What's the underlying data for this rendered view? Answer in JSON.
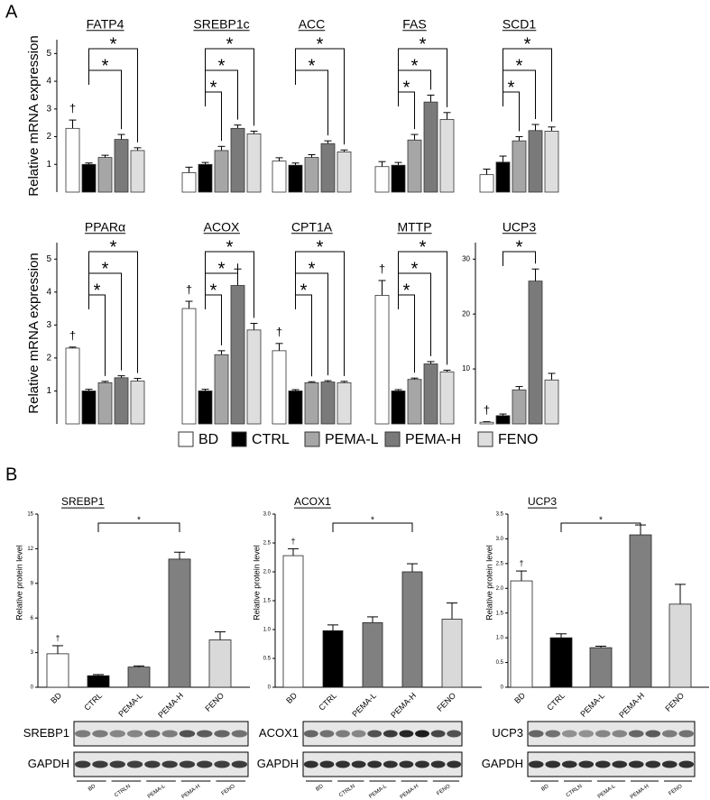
{
  "panel_labels": [
    "A",
    "B"
  ],
  "legend": {
    "labels": [
      "BD",
      "CTRL",
      "PEMA-L",
      "PEMA-H",
      "FENO"
    ],
    "colors": [
      "#ffffff",
      "#000000",
      "#a6a6a6",
      "#7a7a7a",
      "#dedede"
    ]
  },
  "chart_data": [
    {
      "type": "bar",
      "title": "FATP4",
      "ylabel": "Relative mRNA expression",
      "values": [
        2.3,
        1.0,
        1.25,
        1.9,
        1.5
      ],
      "errors": [
        0.3,
        0.05,
        0.08,
        0.18,
        0.1
      ],
      "ylim": [
        0,
        5.5
      ],
      "yticks": [
        1,
        2,
        3,
        4,
        5
      ],
      "significance": [
        {
          "pair": [
            1,
            4
          ],
          "label": "*"
        },
        {
          "pair": [
            1,
            3
          ],
          "label": "*"
        }
      ],
      "marks": [
        {
          "bar": 0,
          "label": "†"
        }
      ]
    },
    {
      "type": "bar",
      "title": "SREBP1c",
      "values": [
        0.7,
        1.0,
        1.5,
        2.3,
        2.1
      ],
      "errors": [
        0.2,
        0.07,
        0.15,
        0.12,
        0.1
      ],
      "ylim": [
        0,
        5.5
      ],
      "significance": [
        {
          "pair": [
            1,
            4
          ],
          "label": "*"
        },
        {
          "pair": [
            1,
            3
          ],
          "label": "*"
        },
        {
          "pair": [
            1,
            2
          ],
          "label": "*"
        }
      ]
    },
    {
      "type": "bar",
      "title": "ACC",
      "values": [
        1.12,
        0.97,
        1.25,
        1.75,
        1.45
      ],
      "errors": [
        0.12,
        0.08,
        0.1,
        0.1,
        0.07
      ],
      "ylim": [
        0,
        5.5
      ],
      "significance": [
        {
          "pair": [
            1,
            4
          ],
          "label": "*"
        },
        {
          "pair": [
            1,
            3
          ],
          "label": "*"
        }
      ]
    },
    {
      "type": "bar",
      "title": "FAS",
      "values": [
        0.92,
        0.97,
        1.88,
        3.25,
        2.62
      ],
      "errors": [
        0.18,
        0.1,
        0.2,
        0.25,
        0.25
      ],
      "ylim": [
        0,
        5.5
      ],
      "significance": [
        {
          "pair": [
            1,
            4
          ],
          "label": "*"
        },
        {
          "pair": [
            1,
            3
          ],
          "label": "*"
        },
        {
          "pair": [
            1,
            2
          ],
          "label": "*"
        }
      ]
    },
    {
      "type": "bar",
      "title": "SCD1",
      "values": [
        0.63,
        1.08,
        1.85,
        2.22,
        2.2
      ],
      "errors": [
        0.2,
        0.22,
        0.15,
        0.22,
        0.15
      ],
      "ylim": [
        0,
        5.5
      ],
      "significance": [
        {
          "pair": [
            1,
            4
          ],
          "label": "*"
        },
        {
          "pair": [
            1,
            3
          ],
          "label": "*"
        },
        {
          "pair": [
            1,
            2
          ],
          "label": "*"
        }
      ]
    },
    {
      "type": "bar",
      "title": "PPARα",
      "ylabel": "Relative mRNA expression",
      "values": [
        2.3,
        1.0,
        1.25,
        1.4,
        1.3
      ],
      "errors": [
        0.03,
        0.05,
        0.04,
        0.06,
        0.08
      ],
      "ylim": [
        0,
        5.5
      ],
      "yticks": [
        1,
        2,
        3,
        4,
        5
      ],
      "significance": [
        {
          "pair": [
            1,
            4
          ],
          "label": "*"
        },
        {
          "pair": [
            1,
            3
          ],
          "label": "*"
        },
        {
          "pair": [
            1,
            2
          ],
          "label": "*"
        }
      ],
      "marks": [
        {
          "bar": 0,
          "label": "†"
        }
      ]
    },
    {
      "type": "bar",
      "title": "ACOX",
      "values": [
        3.5,
        1.0,
        2.1,
        4.2,
        2.85
      ],
      "errors": [
        0.22,
        0.05,
        0.12,
        0.5,
        0.2
      ],
      "ylim": [
        0,
        5.5
      ],
      "significance": [
        {
          "pair": [
            1,
            4
          ],
          "label": "*"
        },
        {
          "pair": [
            1,
            3
          ],
          "label": "*"
        },
        {
          "pair": [
            1,
            2
          ],
          "label": "*"
        }
      ],
      "marks": [
        {
          "bar": 0,
          "label": "†"
        }
      ]
    },
    {
      "type": "bar",
      "title": "CPT1A",
      "values": [
        2.22,
        1.0,
        1.25,
        1.27,
        1.25
      ],
      "errors": [
        0.22,
        0.04,
        0.03,
        0.04,
        0.04
      ],
      "ylim": [
        0,
        5.5
      ],
      "significance": [
        {
          "pair": [
            1,
            4
          ],
          "label": "*"
        },
        {
          "pair": [
            1,
            3
          ],
          "label": "*"
        },
        {
          "pair": [
            1,
            2
          ],
          "label": "*"
        }
      ],
      "marks": [
        {
          "bar": 0,
          "label": "†"
        }
      ]
    },
    {
      "type": "bar",
      "title": "MTTP",
      "values": [
        3.9,
        1.0,
        1.35,
        1.82,
        1.58
      ],
      "errors": [
        0.45,
        0.04,
        0.04,
        0.07,
        0.05
      ],
      "ylim": [
        0,
        5.5
      ],
      "significance": [
        {
          "pair": [
            1,
            4
          ],
          "label": "*"
        },
        {
          "pair": [
            1,
            3
          ],
          "label": "*"
        },
        {
          "pair": [
            1,
            2
          ],
          "label": "*"
        }
      ],
      "marks": [
        {
          "bar": 0,
          "label": "†"
        }
      ]
    },
    {
      "type": "bar",
      "title": "UCP3",
      "values": [
        0.3,
        1.5,
        6.2,
        26,
        8
      ],
      "errors": [
        0.1,
        0.3,
        0.6,
        2.2,
        1.2
      ],
      "ylim": [
        0,
        33
      ],
      "yticks": [
        10,
        20,
        30
      ],
      "significance": [
        {
          "pair": [
            1,
            3
          ],
          "label": "*"
        }
      ],
      "marks": [
        {
          "bar": 0,
          "label": "†"
        }
      ]
    },
    {
      "type": "bar",
      "title": "SREBP1",
      "ylabel": "Relative protein level",
      "categories": [
        "BD",
        "CTRL",
        "PEMA-L",
        "PEMA-H",
        "FENO"
      ],
      "colors": [
        "#ffffff",
        "#000000",
        "#808080",
        "#808080",
        "#d9d9d9"
      ],
      "values": [
        2.9,
        1.0,
        1.75,
        11.1,
        4.1
      ],
      "errors": [
        0.7,
        0.1,
        0.1,
        0.6,
        0.7
      ],
      "ylim": [
        0,
        15
      ],
      "yticks": [
        0,
        3,
        6,
        9,
        12,
        15
      ],
      "significance": [
        {
          "pair": [
            1,
            3
          ],
          "label": "*"
        }
      ],
      "marks": [
        {
          "bar": 0,
          "label": "†"
        }
      ]
    },
    {
      "type": "bar",
      "title": "ACOX1",
      "ylabel": "Relative protein level",
      "categories": [
        "BD",
        "CTRL",
        "PEMA-L",
        "PEMA-H",
        "FENO"
      ],
      "colors": [
        "#ffffff",
        "#000000",
        "#808080",
        "#808080",
        "#d9d9d9"
      ],
      "values": [
        2.28,
        0.98,
        1.12,
        2.0,
        1.18
      ],
      "errors": [
        0.12,
        0.1,
        0.1,
        0.14,
        0.28
      ],
      "ylim": [
        0,
        3.0
      ],
      "yticks": [
        0,
        0.5,
        {
          "value": 1,
          "label": "1.0"
        },
        1.5,
        {
          "value": 2,
          "label": "2.0"
        },
        2.5,
        {
          "value": 3,
          "label": "3.0"
        }
      ],
      "significance": [
        {
          "pair": [
            1,
            3
          ],
          "label": "*"
        }
      ],
      "marks": [
        {
          "bar": 0,
          "label": "†"
        }
      ]
    },
    {
      "type": "bar",
      "title": "UCP3",
      "ylabel": "Relative protein level",
      "categories": [
        "BD",
        "CTRL",
        "PEMA-L",
        "PEMA-H",
        "FENO"
      ],
      "colors": [
        "#ffffff",
        "#000000",
        "#808080",
        "#808080",
        "#d9d9d9"
      ],
      "values": [
        2.15,
        1.0,
        0.8,
        3.08,
        1.68
      ],
      "errors": [
        0.2,
        0.08,
        0.03,
        0.2,
        0.4
      ],
      "ylim": [
        0,
        3.5
      ],
      "yticks": [
        0,
        0.5,
        {
          "value": 1,
          "label": "1.0"
        },
        1.5,
        {
          "value": 2,
          "label": "2.0"
        },
        2.5,
        {
          "value": 3,
          "label": "3.0"
        },
        3.5
      ],
      "significance": [
        {
          "pair": [
            1,
            3
          ],
          "label": "*"
        }
      ],
      "marks": [
        {
          "bar": 0,
          "label": "†"
        }
      ]
    }
  ],
  "blots": [
    {
      "rows": [
        "SREBP1",
        "GAPDH"
      ],
      "lanes": [
        "BD",
        "CTRLN",
        "PEMA-L",
        "PEMA-H",
        "FENO"
      ]
    },
    {
      "rows": [
        "ACOX1",
        "GAPDH"
      ],
      "lanes": [
        "BD",
        "CTRLN",
        "PEMA-L",
        "PEMA-H",
        "FENO"
      ]
    },
    {
      "rows": [
        "UCP3",
        "GAPDH"
      ],
      "lanes": [
        "BD",
        "CTRLN",
        "PEMA-L",
        "PEMA-H",
        "FENO"
      ]
    }
  ]
}
